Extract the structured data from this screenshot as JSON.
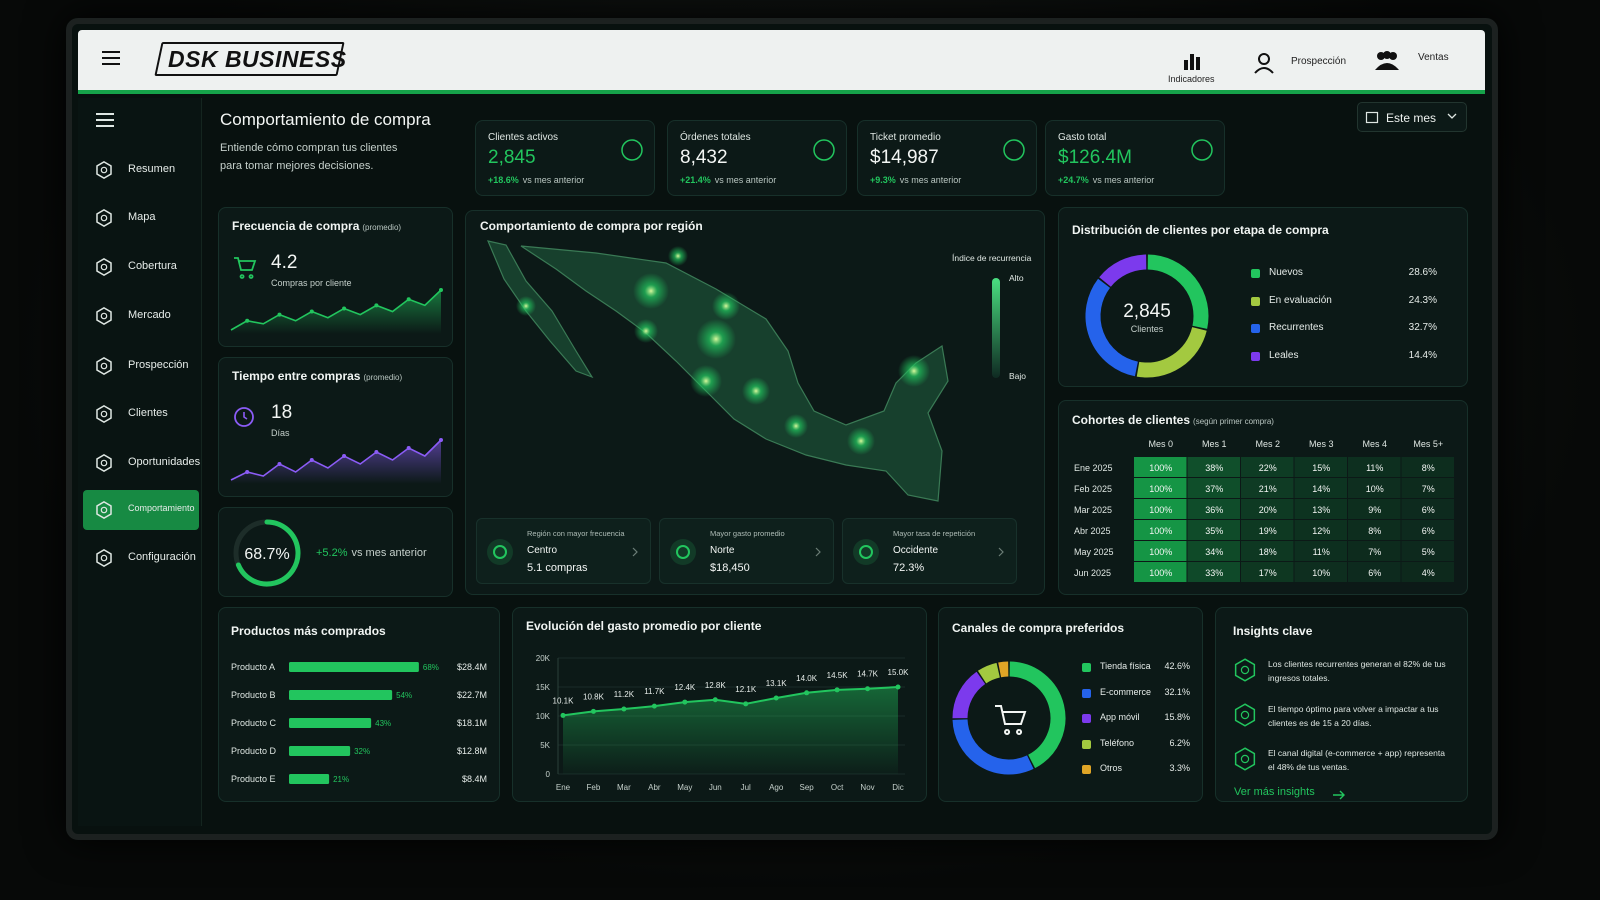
{
  "header": {
    "brand": "DSK BUSINESS",
    "nav": [
      "Indicadores",
      "Prospección",
      "Ventas"
    ]
  },
  "sidebar": {
    "items": [
      "Resumen",
      "Mapa",
      "Cobertura",
      "Mercado",
      "Prospección",
      "Clientes",
      "Oportunidades",
      "Comportamiento",
      "Configuración"
    ],
    "active_index": 7
  },
  "page": {
    "title": "Comportamiento de compra",
    "subtitle": "Entiende cómo compran tus clientes para tomar mejores decisiones.",
    "period": "Este mes"
  },
  "kpis": [
    {
      "label": "Clientes activos",
      "value": "2,845",
      "change": "+18.6%",
      "note": "vs mes anterior"
    },
    {
      "label": "Órdenes totales",
      "value": "8,432",
      "change": "+21.4%",
      "note": "vs mes anterior"
    },
    {
      "label": "Ticket promedio",
      "value": "$14,987",
      "change": "+9.3%",
      "note": "vs mes anterior"
    },
    {
      "label": "Gasto total",
      "value": "$126.4M",
      "change": "+24.7%",
      "note": "vs mes anterior"
    }
  ],
  "frequency": {
    "title": "Frecuencia de compra",
    "qualifier": "(promedio)",
    "value": "4.2",
    "unit": "Compras por cliente",
    "trend": [
      3.1,
      3.4,
      3.3,
      3.6,
      3.4,
      3.7,
      3.5,
      3.8,
      3.6,
      3.9,
      3.7,
      4.1,
      3.9,
      4.4
    ]
  },
  "interval": {
    "title": "Tiempo entre compras",
    "qualifier": "(promedio)",
    "value": "18",
    "unit": "Días",
    "trend": [
      10,
      12,
      11,
      14,
      12,
      15,
      13,
      16,
      14,
      17,
      15,
      18,
      16,
      20
    ]
  },
  "retention": {
    "value": 68.7,
    "value_label": "68.7%",
    "change": "+5.2%",
    "note": "vs mes anterior"
  },
  "map": {
    "title": "Comportamiento de compra por región",
    "legend_title": "Índice de recurrencia",
    "legend_high": "Alto",
    "legend_low": "Bajo",
    "highlights": [
      {
        "label": "Región con mayor frecuencia",
        "region": "Centro",
        "value": "5.1 compras"
      },
      {
        "label": "Mayor gasto promedio",
        "region": "Norte",
        "value": "$18,450"
      },
      {
        "label": "Mayor tasa de repetición",
        "region": "Occidente",
        "value": "72.3%"
      }
    ]
  },
  "cohorts": {
    "title": "Cohortes de clientes",
    "qualifier": "(según primer compra)",
    "columns": [
      "Mes 0",
      "Mes 1",
      "Mes 2",
      "Mes 3",
      "Mes 4",
      "Mes 5+"
    ],
    "rows": [
      "Ene 2025",
      "Feb 2025",
      "Mar 2025",
      "Abr 2025",
      "May 2025",
      "Jun 2025"
    ],
    "values": [
      [
        100,
        38,
        22,
        15,
        11,
        8
      ],
      [
        100,
        37,
        21,
        14,
        10,
        7
      ],
      [
        100,
        36,
        20,
        13,
        9,
        6
      ],
      [
        100,
        35,
        19,
        12,
        8,
        6
      ],
      [
        100,
        34,
        18,
        11,
        7,
        5
      ],
      [
        100,
        33,
        17,
        10,
        6,
        4
      ]
    ],
    "value_labels": [
      [
        "100%",
        "38%",
        "22%",
        "15%",
        "11%",
        "8%"
      ],
      [
        "100%",
        "37%",
        "21%",
        "14%",
        "10%",
        "7%"
      ],
      [
        "100%",
        "36%",
        "20%",
        "13%",
        "9%",
        "6%"
      ],
      [
        "100%",
        "35%",
        "19%",
        "12%",
        "8%",
        "6%"
      ],
      [
        "100%",
        "34%",
        "18%",
        "11%",
        "7%",
        "5%"
      ],
      [
        "100%",
        "33%",
        "17%",
        "10%",
        "6%",
        "4%"
      ]
    ]
  },
  "chart_data": [
    {
      "type": "donut",
      "title": "Distribución de clientes por etapa de compra",
      "center_value": "2,845",
      "center_label": "Clientes",
      "categories": [
        "Nuevos",
        "En evaluación",
        "Recurrentes",
        "Leales"
      ],
      "values": [
        28.6,
        24.3,
        32.7,
        14.4
      ],
      "value_labels": [
        "28.6%",
        "24.3%",
        "32.7%",
        "14.4%"
      ],
      "colors": [
        "#22c55e",
        "#a3c940",
        "#2563eb",
        "#7c3aed"
      ]
    },
    {
      "type": "bar",
      "horizontal": true,
      "title": "Productos más comprados",
      "categories": [
        "Producto A",
        "Producto B",
        "Producto C",
        "Producto D",
        "Producto E"
      ],
      "values": [
        68,
        54,
        43,
        32,
        21
      ],
      "value_labels": [
        "68%",
        "54%",
        "43%",
        "32%",
        "21%"
      ],
      "amounts": [
        "$28.4M",
        "$22.7M",
        "$18.1M",
        "$12.8M",
        "$8.4M"
      ],
      "color": "#22c55e",
      "xlim": [
        0,
        100
      ]
    },
    {
      "type": "line",
      "title": "Evolución del gasto promedio por cliente",
      "categories": [
        "Ene",
        "Feb",
        "Mar",
        "Abr",
        "May",
        "Jun",
        "Jul",
        "Ago",
        "Sep",
        "Oct",
        "Nov",
        "Dic"
      ],
      "values": [
        10100,
        10800,
        11200,
        11700,
        12400,
        12800,
        12100,
        13100,
        14000,
        14500,
        14700,
        15000
      ],
      "value_labels": [
        "10.1K",
        "10.8K",
        "11.2K",
        "11.7K",
        "12.4K",
        "12.8K",
        "12.1K",
        "13.1K",
        "14.0K",
        "14.5K",
        "14.7K",
        "15.0K"
      ],
      "ylim": [
        0,
        20000
      ],
      "yticks": [
        0,
        {
          "value": 5000,
          "label": "5K"
        },
        {
          "value": 10000,
          "label": "10K"
        },
        {
          "value": 15000,
          "label": "15K"
        },
        {
          "value": 20000,
          "label": "20K"
        }
      ],
      "color": "#22c55e",
      "area": true,
      "grid": true
    },
    {
      "type": "donut",
      "title": "Canales de compra preferidos",
      "categories": [
        "Tienda física",
        "E-commerce",
        "App móvil",
        "Teléfono",
        "Otros"
      ],
      "values": [
        42.6,
        32.1,
        15.8,
        6.2,
        3.3
      ],
      "value_labels": [
        "42.6%",
        "32.1%",
        "15.8%",
        "6.2%",
        "3.3%"
      ],
      "colors": [
        "#22c55e",
        "#2563eb",
        "#7c3aed",
        "#a3c940",
        "#e0a526"
      ]
    }
  ],
  "insights": {
    "title": "Insights clave",
    "items": [
      "Los clientes recurrentes generan el 82% de tus ingresos totales.",
      "El tiempo óptimo para volver a impactar a tus clientes es de 15 a 20 días.",
      "El canal digital (e-commerce + app) representa el 48% de tus ventas."
    ],
    "link": "Ver más insights"
  }
}
